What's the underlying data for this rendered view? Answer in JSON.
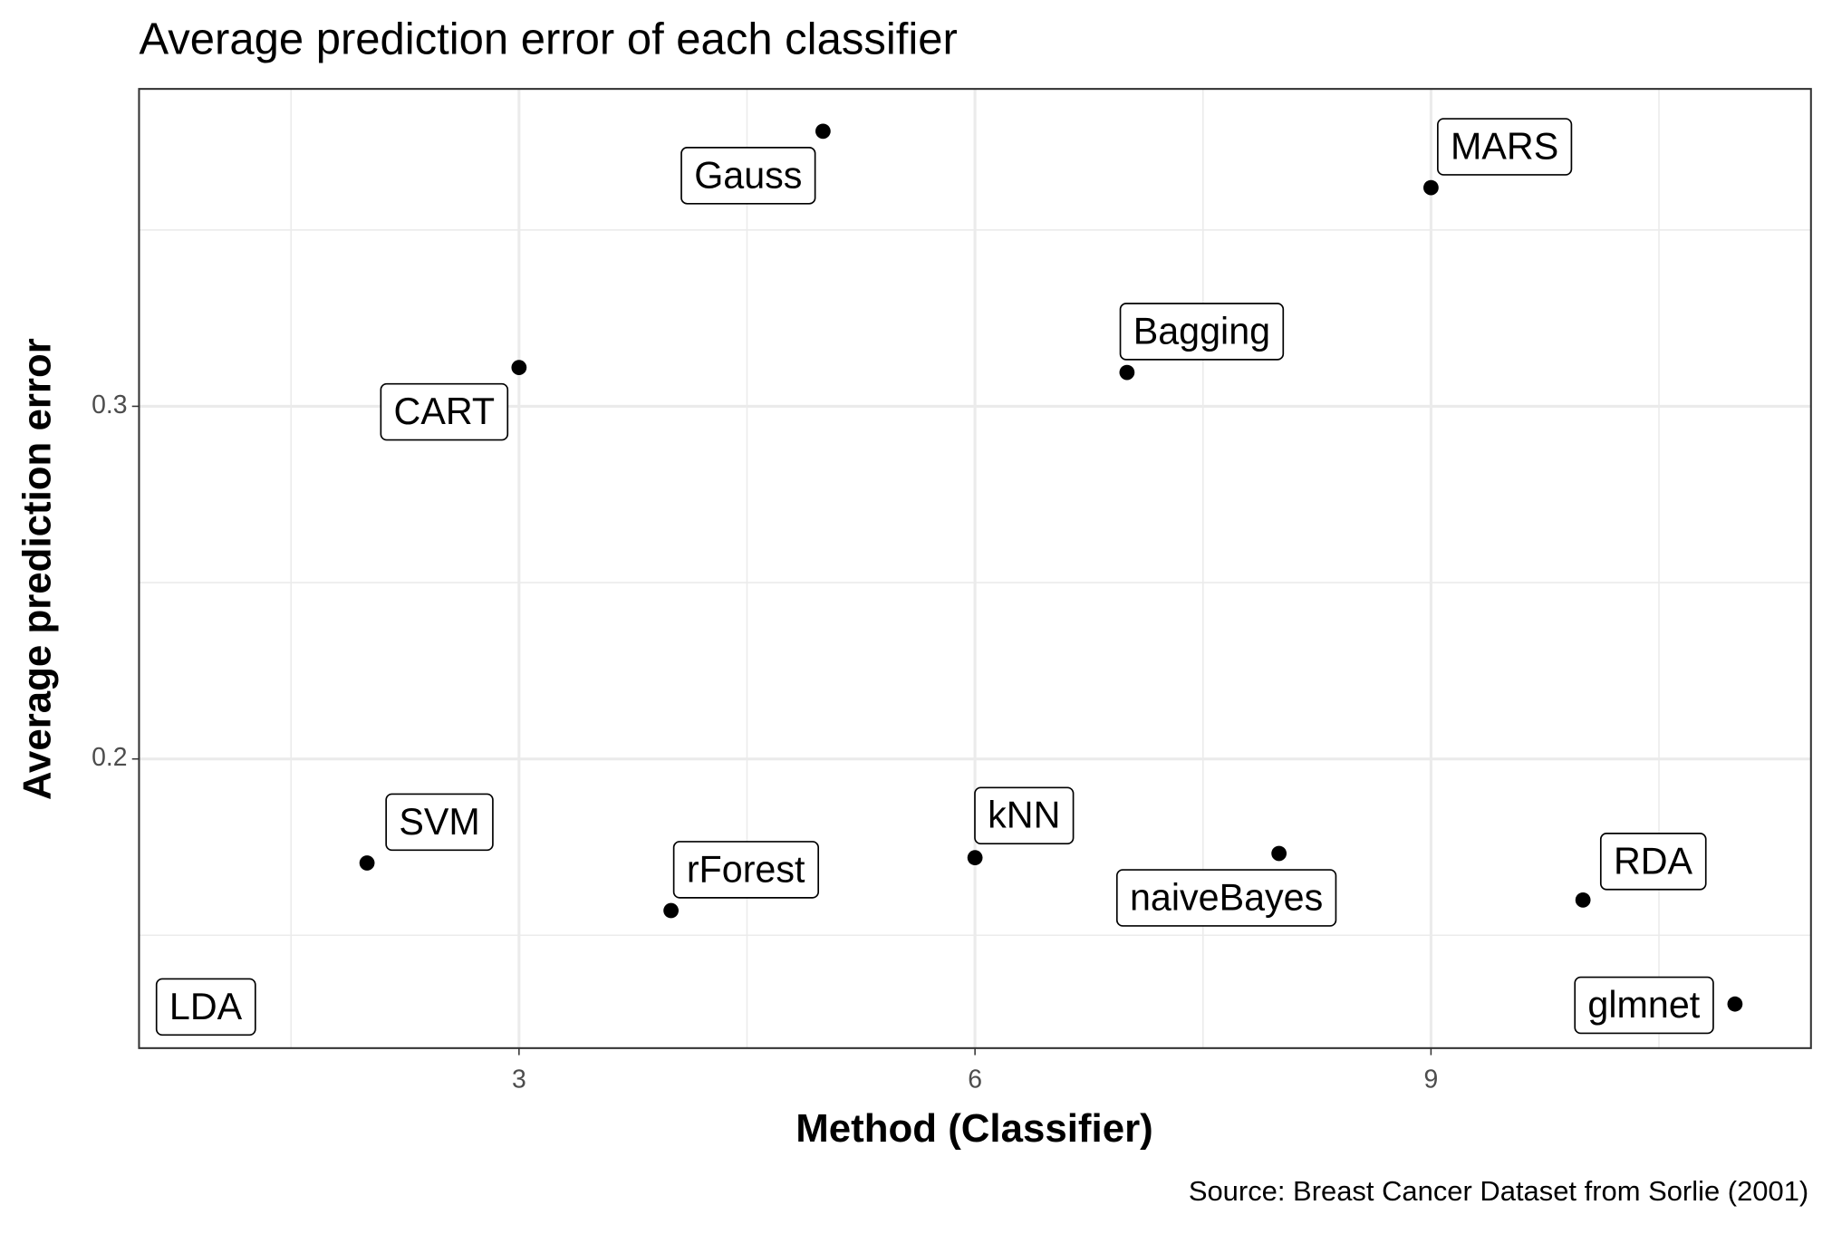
{
  "chart_data": {
    "type": "scatter",
    "title": "Average prediction error of each classifier",
    "x_label": "Method (Classifier)",
    "y_label": "Average prediction error",
    "caption": "Source: Breast Cancer Dataset from Sorlie (2001)",
    "x": [
      1,
      2,
      3,
      4,
      5,
      6,
      7,
      8,
      9,
      10,
      11
    ],
    "values": [
      0.131,
      0.1705,
      0.311,
      0.157,
      0.378,
      0.172,
      0.3096,
      0.1732,
      0.362,
      0.16,
      0.1305
    ],
    "point_labels": [
      "LDA",
      "SVM",
      "CART",
      "rForest",
      "Gauss",
      "kNN",
      "Bagging",
      "naiveBayes",
      "MARS",
      "RDA",
      "glmnet"
    ],
    "color": "#000000",
    "xlim": [
      0.5,
      11.5
    ],
    "xticks": [
      3,
      6,
      9
    ],
    "ylim": [
      0.118,
      0.39
    ],
    "yticks": [
      0.2,
      0.3
    ],
    "grid": true
  }
}
